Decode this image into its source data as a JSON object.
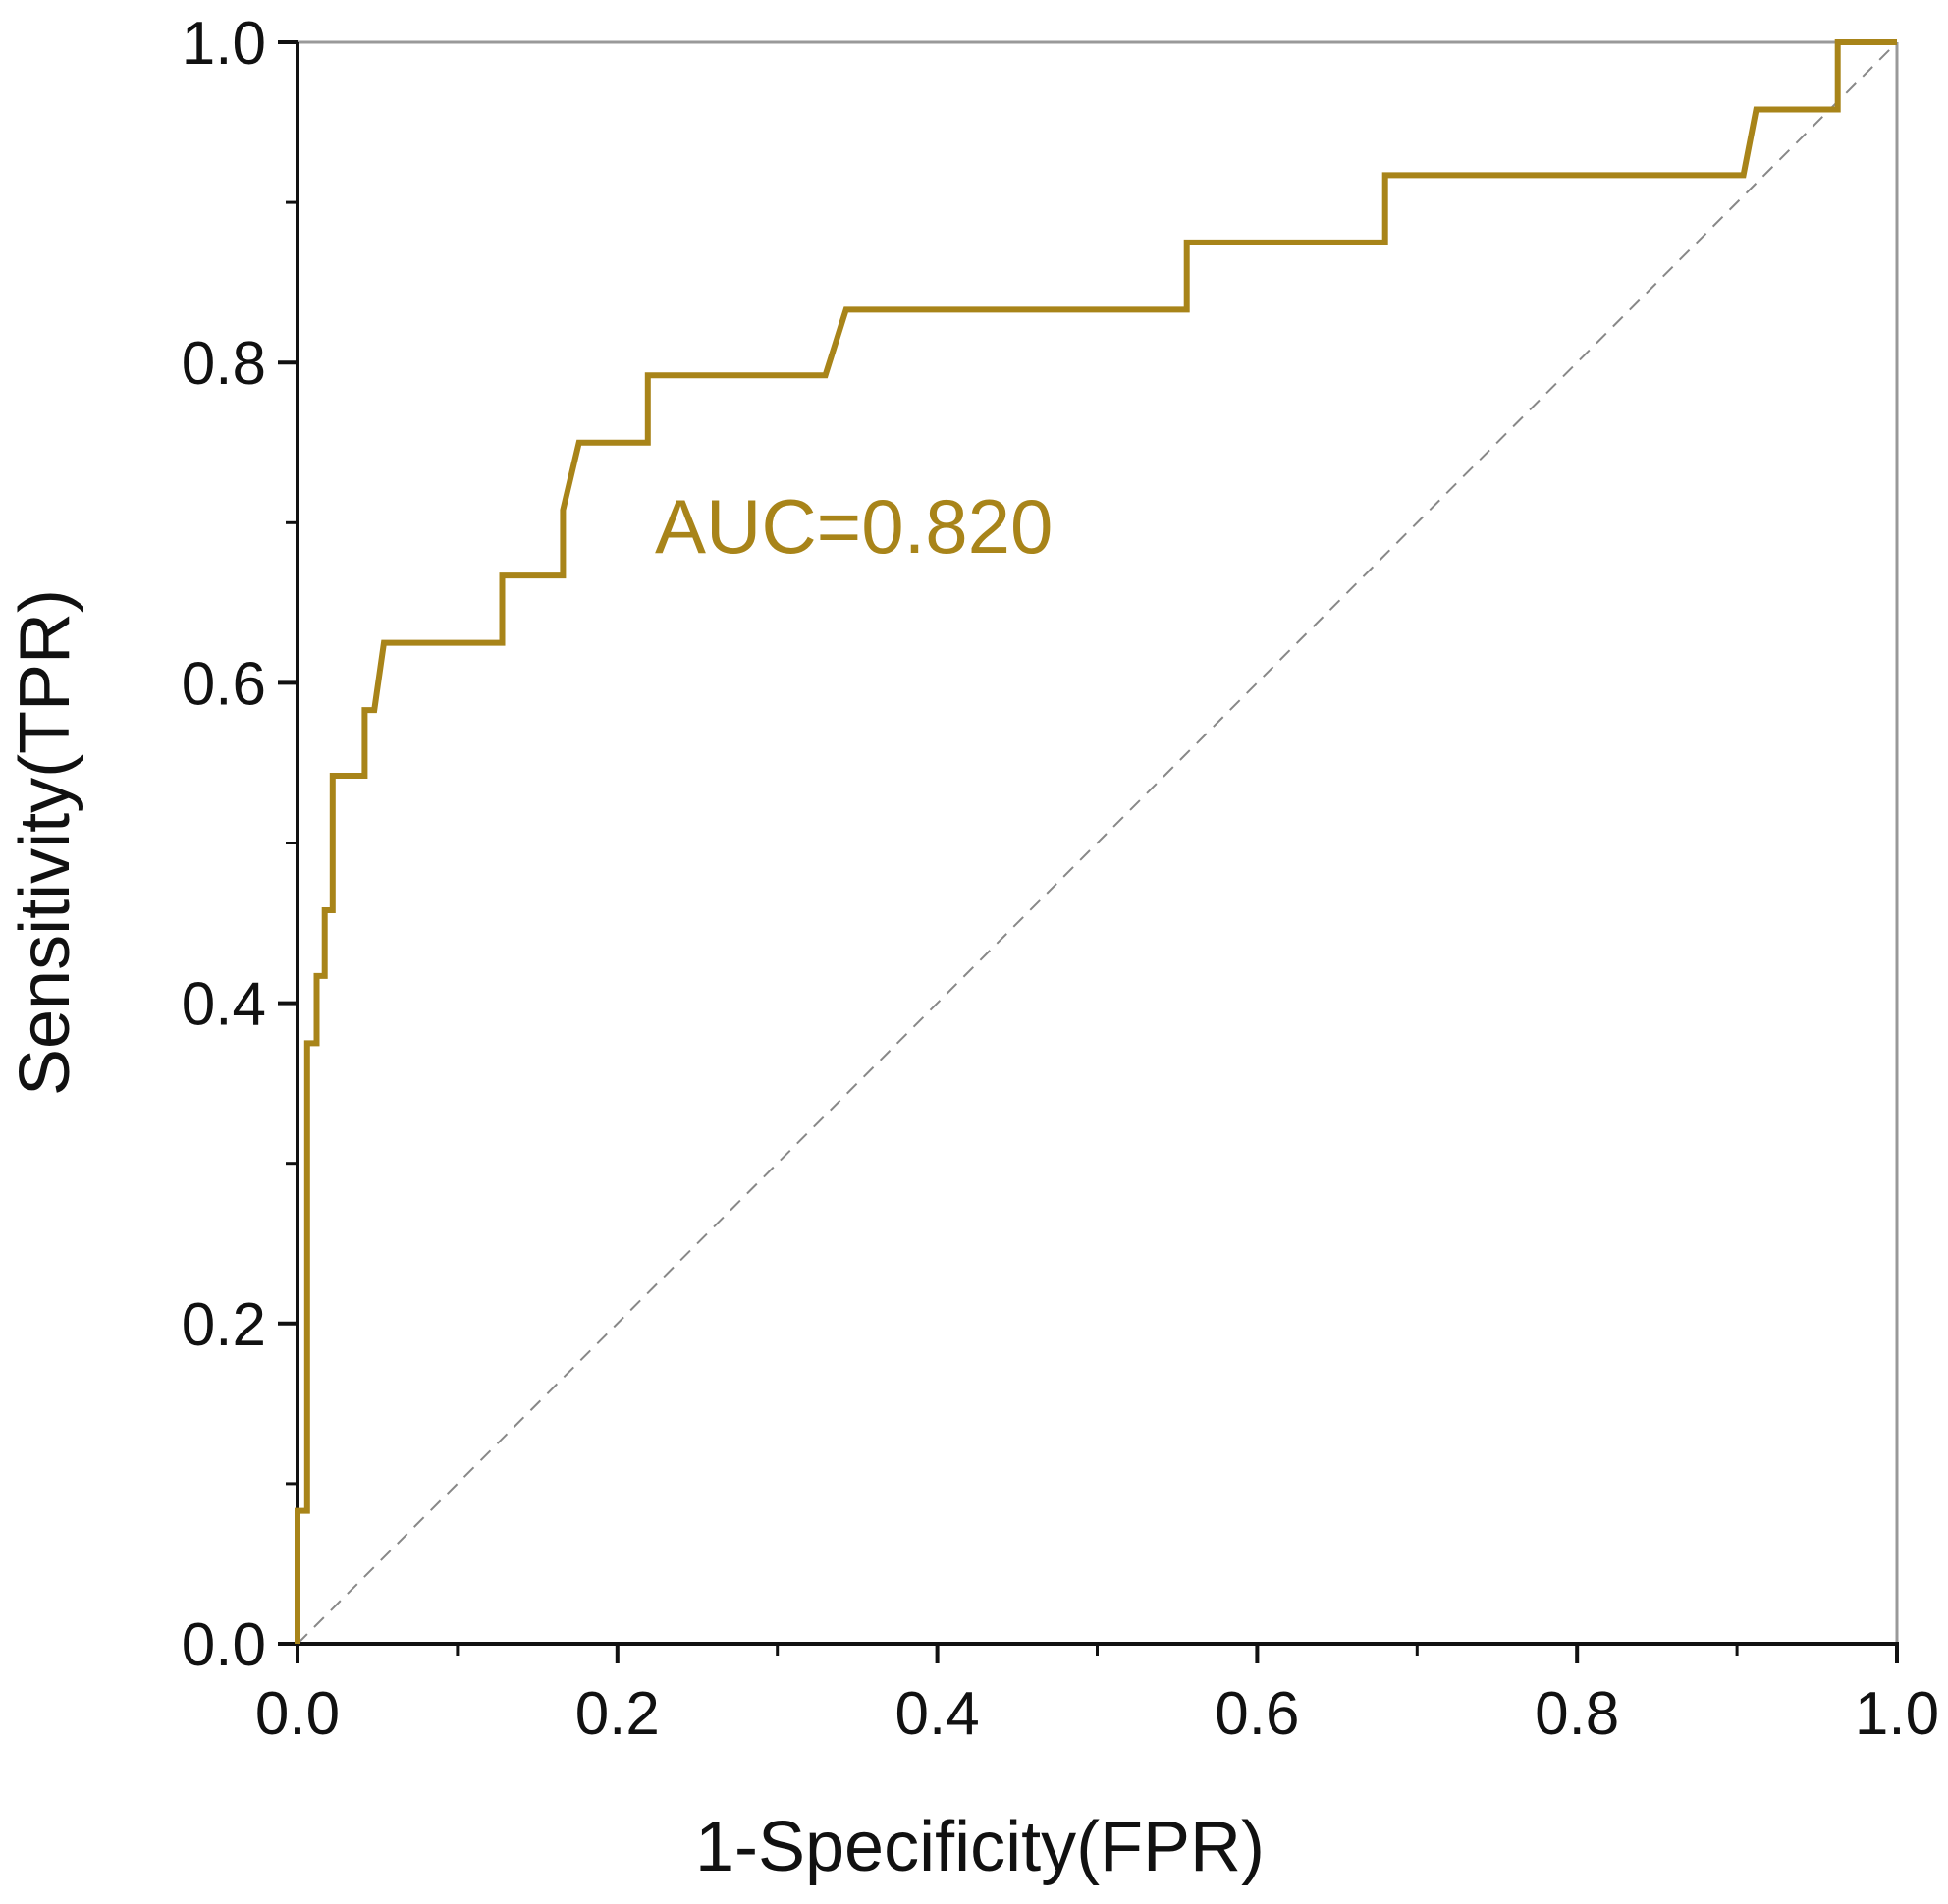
{
  "chart_data": {
    "type": "line",
    "xlabel": "1-Specificity(FPR)",
    "ylabel": "Sensitivity(TPR)",
    "xlim": [
      0,
      1
    ],
    "ylim": [
      0,
      1
    ],
    "x_ticks": [
      "0.0",
      "0.2",
      "0.4",
      "0.6",
      "0.8",
      "1.0"
    ],
    "y_ticks": [
      "0.0",
      "0.2",
      "0.4",
      "0.6",
      "0.8",
      "1.0"
    ],
    "grid": false,
    "annotation": "AUC=0.820",
    "colors": {
      "roc": "#a88419",
      "diagonal": "#888888",
      "axis": "#111111",
      "frame": "#999999"
    },
    "series": [
      {
        "values": [
          [
            0.0,
            0.0
          ],
          [
            0.0,
            0.083
          ],
          [
            0.006,
            0.083
          ],
          [
            0.006,
            0.375
          ],
          [
            0.012,
            0.375
          ],
          [
            0.012,
            0.417
          ],
          [
            0.017,
            0.417
          ],
          [
            0.017,
            0.458
          ],
          [
            0.022,
            0.458
          ],
          [
            0.022,
            0.542
          ],
          [
            0.042,
            0.542
          ],
          [
            0.042,
            0.583
          ],
          [
            0.048,
            0.583
          ],
          [
            0.054,
            0.625
          ],
          [
            0.128,
            0.625
          ],
          [
            0.128,
            0.667
          ],
          [
            0.166,
            0.667
          ],
          [
            0.166,
            0.708
          ],
          [
            0.176,
            0.75
          ],
          [
            0.219,
            0.75
          ],
          [
            0.219,
            0.792
          ],
          [
            0.33,
            0.792
          ],
          [
            0.343,
            0.833
          ],
          [
            0.556,
            0.833
          ],
          [
            0.556,
            0.875
          ],
          [
            0.68,
            0.875
          ],
          [
            0.68,
            0.917
          ],
          [
            0.904,
            0.917
          ],
          [
            0.912,
            0.958
          ],
          [
            0.963,
            0.958
          ],
          [
            0.963,
            1.0
          ],
          [
            1.0,
            1.0
          ]
        ]
      },
      {
        "values": [
          [
            0,
            0
          ],
          [
            1,
            1
          ]
        ]
      }
    ]
  }
}
